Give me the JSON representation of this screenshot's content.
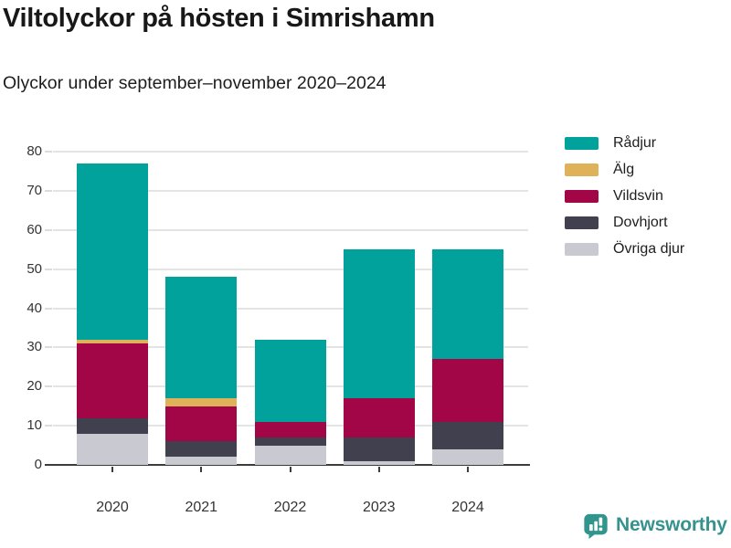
{
  "title": "Viltolyckor på hösten i Simrishamn",
  "subtitle": "Olyckor under september–november 2020–2024",
  "brand": {
    "name": "Newsworthy",
    "color": "#2f958d"
  },
  "chart_data": {
    "type": "bar",
    "stacked": true,
    "title": "Viltolyckor på hösten i Simrishamn",
    "subtitle": "Olyckor under september–november 2020–2024",
    "categories": [
      "2020",
      "2021",
      "2022",
      "2023",
      "2024"
    ],
    "series": [
      {
        "name": "Rådjur",
        "color": "#00a29b",
        "values": [
          45,
          31,
          21,
          38,
          28
        ]
      },
      {
        "name": "Älg",
        "color": "#dfb259",
        "values": [
          1,
          2,
          0,
          0,
          0
        ]
      },
      {
        "name": "Vildsvin",
        "color": "#a30646",
        "values": [
          19,
          9,
          4,
          10,
          16
        ]
      },
      {
        "name": "Dovhjort",
        "color": "#40404e",
        "values": [
          4,
          4,
          2,
          6,
          7
        ]
      },
      {
        "name": "Övriga djur",
        "color": "#c9c9d2",
        "values": [
          8,
          2,
          5,
          1,
          4
        ]
      }
    ],
    "stack_order_bottom_to_top": [
      "Övriga djur",
      "Dovhjort",
      "Vildsvin",
      "Älg",
      "Rådjur"
    ],
    "totals": [
      77,
      48,
      32,
      55,
      55
    ],
    "xlabel": "",
    "ylabel": "",
    "ylim": [
      0,
      80
    ],
    "yticks": [
      0,
      10,
      20,
      30,
      40,
      50,
      60,
      70,
      80
    ],
    "grid": true,
    "legend_position": "right"
  }
}
